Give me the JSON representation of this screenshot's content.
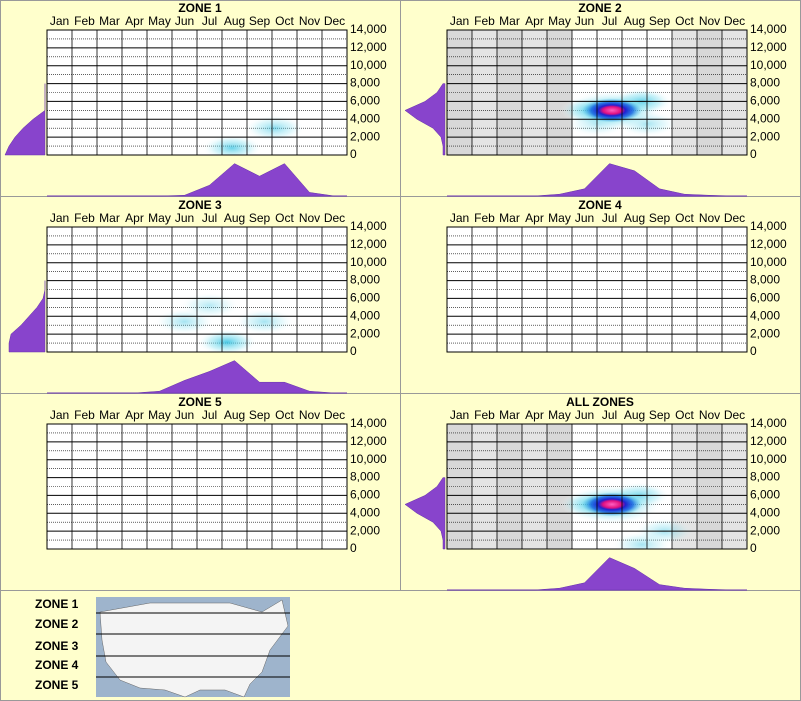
{
  "chart_data": [
    {
      "type": "heatmap",
      "title": "ZONE 1",
      "categories": [
        "Jan",
        "Feb",
        "Mar",
        "Apr",
        "May",
        "Jun",
        "Jul",
        "Aug",
        "Sep",
        "Oct",
        "Nov",
        "Dec"
      ],
      "ylim": [
        0,
        14000
      ],
      "yticks": [
        0,
        {
          "value": 2000,
          "label": "2,000"
        },
        {
          "value": 4000,
          "label": "4,000"
        },
        {
          "value": 6000,
          "label": "6,000"
        },
        {
          "value": 8000,
          "label": "8,000"
        },
        {
          "value": 10000,
          "label": "10,000"
        },
        {
          "value": 12000,
          "label": "12,000"
        },
        {
          "value": 14000,
          "label": "14,000"
        }
      ],
      "shaded": [
        false,
        false,
        false,
        false,
        false,
        false,
        false,
        false,
        false,
        false,
        false,
        false
      ],
      "color": "#8844cc",
      "month_density": [
        0,
        0,
        0,
        0,
        0,
        0.02,
        0.3,
        0.9,
        0.55,
        0.9,
        0.1,
        0
      ],
      "elevation_density": {
        "elevations": [
          0,
          1000,
          2000,
          3000,
          4000,
          5000,
          6000,
          7000,
          8000
        ],
        "values": [
          1,
          0.9,
          0.75,
          0.55,
          0.3,
          0,
          0,
          0,
          0
        ]
      },
      "hotspots": [
        {
          "month": 7.9,
          "elevation": 800,
          "strength": 0.5
        },
        {
          "month": 9.6,
          "elevation": 3000,
          "strength": 0.4
        }
      ]
    },
    {
      "type": "heatmap",
      "title": "ZONE 2",
      "categories": [
        "Jan",
        "Feb",
        "Mar",
        "Apr",
        "May",
        "Jun",
        "Jul",
        "Aug",
        "Sep",
        "Oct",
        "Nov",
        "Dec"
      ],
      "ylim": [
        0,
        14000
      ],
      "yticks": [
        0,
        {
          "value": 2000,
          "label": "2,000"
        },
        {
          "value": 4000,
          "label": "4,000"
        },
        {
          "value": 6000,
          "label": "6,000"
        },
        {
          "value": 8000,
          "label": "8,000"
        },
        {
          "value": 10000,
          "label": "10,000"
        },
        {
          "value": 12000,
          "label": "12,000"
        },
        {
          "value": 14000,
          "label": "14,000"
        }
      ],
      "shaded": [
        true,
        true,
        true,
        true,
        true,
        false,
        false,
        false,
        false,
        true,
        true,
        true
      ],
      "color": "#8844cc",
      "month_density": [
        0,
        0,
        0,
        0,
        0.05,
        0.2,
        0.9,
        0.7,
        0.2,
        0.05,
        0.02,
        0
      ],
      "elevation_density": {
        "elevations": [
          0,
          1000,
          2000,
          3000,
          4000,
          5000,
          6000,
          7000,
          8000
        ],
        "values": [
          0.05,
          0.05,
          0.1,
          0.3,
          0.7,
          1,
          0.5,
          0.2,
          0.05
        ]
      },
      "hotspots": [
        {
          "month": 6.2,
          "elevation": 5000,
          "strength": 0.5
        },
        {
          "month": 8.3,
          "elevation": 6000,
          "strength": 0.6
        },
        {
          "month": 8.5,
          "elevation": 3500,
          "strength": 0.3
        },
        {
          "month": 6.5,
          "elevation": 3500,
          "strength": 0.25
        },
        {
          "month": 7.1,
          "elevation": 5000,
          "strength": 1
        }
      ]
    },
    {
      "type": "heatmap",
      "title": "ZONE 3",
      "categories": [
        "Jan",
        "Feb",
        "Mar",
        "Apr",
        "May",
        "Jun",
        "Jul",
        "Aug",
        "Sep",
        "Oct",
        "Nov",
        "Dec"
      ],
      "ylim": [
        0,
        14000
      ],
      "yticks": [
        0,
        {
          "value": 2000,
          "label": "2,000"
        },
        {
          "value": 4000,
          "label": "4,000"
        },
        {
          "value": 6000,
          "label": "6,000"
        },
        {
          "value": 8000,
          "label": "8,000"
        },
        {
          "value": 10000,
          "label": "10,000"
        },
        {
          "value": 12000,
          "label": "12,000"
        },
        {
          "value": 14000,
          "label": "14,000"
        }
      ],
      "shaded": [
        false,
        false,
        false,
        false,
        false,
        false,
        false,
        false,
        false,
        false,
        false,
        false
      ],
      "color": "#8844cc",
      "month_density": [
        0,
        0,
        0,
        0,
        0.05,
        0.35,
        0.6,
        0.9,
        0.3,
        0.3,
        0.05,
        0
      ],
      "elevation_density": {
        "elevations": [
          0,
          1000,
          2000,
          3000,
          4000,
          5000,
          6000,
          7000,
          8000
        ],
        "values": [
          0.9,
          0.9,
          0.85,
          0.6,
          0.4,
          0.2,
          0.05,
          0,
          0
        ]
      },
      "hotspots": [
        {
          "month": 6.0,
          "elevation": 3400,
          "strength": 0.3
        },
        {
          "month": 9.2,
          "elevation": 3400,
          "strength": 0.3
        },
        {
          "month": 7.0,
          "elevation": 5200,
          "strength": 0.25
        },
        {
          "month": 7.7,
          "elevation": 1100,
          "strength": 0.6
        }
      ]
    },
    {
      "type": "heatmap",
      "title": "ZONE 4",
      "categories": [
        "Jan",
        "Feb",
        "Mar",
        "Apr",
        "May",
        "Jun",
        "Jul",
        "Aug",
        "Sep",
        "Oct",
        "Nov",
        "Dec"
      ],
      "ylim": [
        0,
        14000
      ],
      "yticks": [
        0,
        {
          "value": 2000,
          "label": "2,000"
        },
        {
          "value": 4000,
          "label": "4,000"
        },
        {
          "value": 6000,
          "label": "6,000"
        },
        {
          "value": 8000,
          "label": "8,000"
        },
        {
          "value": 10000,
          "label": "10,000"
        },
        {
          "value": 12000,
          "label": "12,000"
        },
        {
          "value": 14000,
          "label": "14,000"
        }
      ],
      "shaded": [
        false,
        false,
        false,
        false,
        false,
        false,
        false,
        false,
        false,
        false,
        false,
        false
      ]
    },
    {
      "type": "heatmap",
      "title": "ZONE 5",
      "categories": [
        "Jan",
        "Feb",
        "Mar",
        "Apr",
        "May",
        "Jun",
        "Jul",
        "Aug",
        "Sep",
        "Oct",
        "Nov",
        "Dec"
      ],
      "ylim": [
        0,
        14000
      ],
      "yticks": [
        0,
        {
          "value": 2000,
          "label": "2,000"
        },
        {
          "value": 4000,
          "label": "4,000"
        },
        {
          "value": 6000,
          "label": "6,000"
        },
        {
          "value": 8000,
          "label": "8,000"
        },
        {
          "value": 10000,
          "label": "10,000"
        },
        {
          "value": 12000,
          "label": "12,000"
        },
        {
          "value": 14000,
          "label": "14,000"
        }
      ],
      "shaded": [
        false,
        false,
        false,
        false,
        false,
        false,
        false,
        false,
        false,
        false,
        false,
        false
      ]
    },
    {
      "type": "heatmap",
      "title": "ALL ZONES",
      "categories": [
        "Jan",
        "Feb",
        "Mar",
        "Apr",
        "May",
        "Jun",
        "Jul",
        "Aug",
        "Sep",
        "Oct",
        "Nov",
        "Dec"
      ],
      "ylim": [
        0,
        14000
      ],
      "yticks": [
        0,
        {
          "value": 2000,
          "label": "2,000"
        },
        {
          "value": 4000,
          "label": "4,000"
        },
        {
          "value": 6000,
          "label": "6,000"
        },
        {
          "value": 8000,
          "label": "8,000"
        },
        {
          "value": 10000,
          "label": "10,000"
        },
        {
          "value": 12000,
          "label": "12,000"
        },
        {
          "value": 14000,
          "label": "14,000"
        }
      ],
      "shaded": [
        true,
        true,
        true,
        true,
        true,
        false,
        false,
        false,
        false,
        true,
        true,
        true
      ],
      "color": "#8844cc",
      "month_density": [
        0,
        0,
        0,
        0,
        0.05,
        0.2,
        0.9,
        0.6,
        0.15,
        0.05,
        0.02,
        0
      ],
      "elevation_density": {
        "elevations": [
          0,
          1000,
          2000,
          3000,
          4000,
          5000,
          6000,
          7000,
          8000
        ],
        "values": [
          0.05,
          0.05,
          0.1,
          0.3,
          0.7,
          1,
          0.5,
          0.2,
          0.05
        ]
      },
      "hotspots": [
        {
          "month": 6.2,
          "elevation": 5000,
          "strength": 0.5
        },
        {
          "month": 8.2,
          "elevation": 6000,
          "strength": 0.5
        },
        {
          "month": 8.3,
          "elevation": 500,
          "strength": 0.3
        },
        {
          "month": 9.2,
          "elevation": 2000,
          "strength": 0.3
        },
        {
          "month": 7.1,
          "elevation": 5000,
          "strength": 1
        }
      ]
    }
  ],
  "zone_legend": [
    "ZONE 1",
    "ZONE 2",
    "ZONE 3",
    "ZONE 4",
    "ZONE 5"
  ]
}
